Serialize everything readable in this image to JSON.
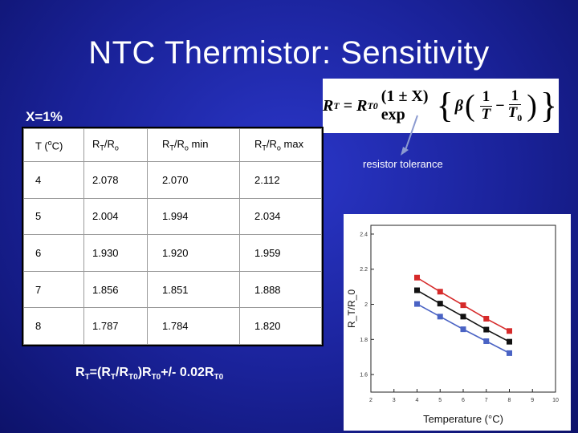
{
  "title": "NTC Thermistor: Sensitivity",
  "tolerance": {
    "label": "X=1%",
    "annotation": "resistor tolerance"
  },
  "formula": {
    "lhs": "R",
    "lhs_sub": "T",
    "r0": "R",
    "r0_sub": "T0",
    "factor": "(1 ± X) exp",
    "beta": "β",
    "frac1_num": "1",
    "frac1_den": "T",
    "minus": "−",
    "frac2_num": "1",
    "frac2_den": "T",
    "frac2_den_sub": "0"
  },
  "table": {
    "headers": [
      {
        "main": "T (",
        "sup": "o",
        "tail": "C)"
      },
      {
        "main": "R",
        "sub": "T",
        "mid": "/R",
        "sub2": "o",
        "tail": ""
      },
      {
        "main": "R",
        "sub": "T",
        "mid": "/R",
        "sub2": "o",
        "tail": " min"
      },
      {
        "main": "R",
        "sub": "T",
        "mid": "/R",
        "sub2": "o",
        "tail": " max"
      }
    ],
    "rows": [
      [
        "4",
        "2.078",
        "2.070",
        "2.112"
      ],
      [
        "5",
        "2.004",
        "1.994",
        "2.034"
      ],
      [
        "6",
        "1.930",
        "1.920",
        "1.959"
      ],
      [
        "7",
        "1.856",
        "1.851",
        "1.888"
      ],
      [
        "8",
        "1.787",
        "1.784",
        "1.820"
      ]
    ]
  },
  "rt_formula": {
    "p1": "R",
    "s1": "T",
    "p2": "=(R",
    "s2": "T",
    "p3": "/R",
    "s3": "T0",
    "p4": ")R",
    "s4": "T0",
    "p5": "+/- 0.02R",
    "s5": "T0"
  },
  "chart_data": {
    "type": "line",
    "xlabel": "Temperature (°C)",
    "ylabel": "R_T/R_0",
    "xlim": [
      2,
      10
    ],
    "ylim": [
      1.5,
      2.45
    ],
    "x_ticks": [
      "2",
      "3",
      "4",
      "5",
      "6",
      "7",
      "8",
      "9",
      "10"
    ],
    "y_ticks": [
      "1.6",
      "1.8",
      "2",
      "2.2",
      "2.4"
    ],
    "x": [
      4,
      5,
      6,
      7,
      8
    ],
    "series": [
      {
        "name": "",
        "color": "#d62a2a",
        "values": [
          2.152,
          2.072,
          1.995,
          1.918,
          1.848
        ]
      },
      {
        "name": "",
        "color": "#111111",
        "values": [
          2.08,
          2.004,
          1.93,
          1.856,
          1.787
        ]
      },
      {
        "name": "",
        "color": "#4a63c4",
        "values": [
          2.002,
          1.93,
          1.858,
          1.79,
          1.722
        ]
      }
    ]
  }
}
